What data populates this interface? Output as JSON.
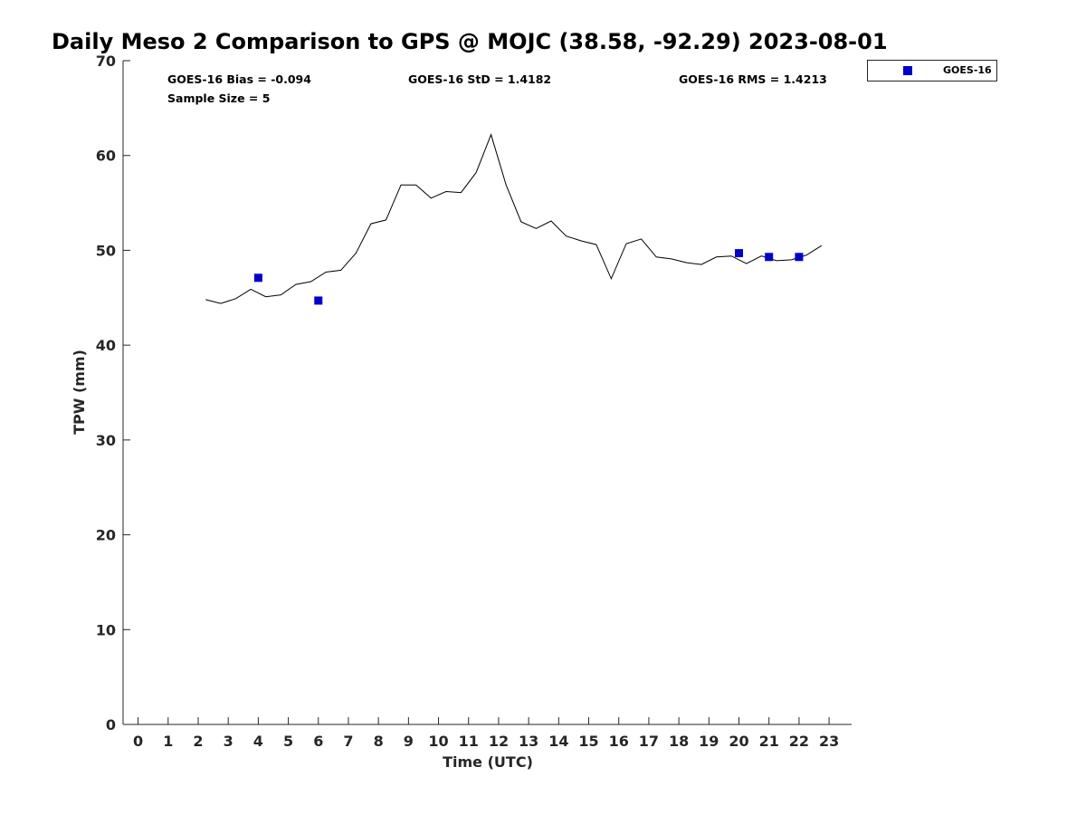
{
  "chart_data": {
    "type": "line",
    "title": "Daily Meso 2 Comparison to GPS @ MOJC (38.58, -92.29) 2023-08-01",
    "xlabel": "Time (UTC)",
    "ylabel": "TPW (mm)",
    "xlim": [
      -0.5,
      23.75
    ],
    "ylim": [
      0,
      70
    ],
    "x_ticks": [
      0,
      1,
      2,
      3,
      4,
      5,
      6,
      7,
      8,
      9,
      10,
      11,
      12,
      13,
      14,
      15,
      16,
      17,
      18,
      19,
      20,
      21,
      22,
      23
    ],
    "y_ticks": [
      0,
      10,
      20,
      30,
      40,
      50,
      60,
      70
    ],
    "grid": false,
    "legend_position": "top-right outside",
    "stats": {
      "bias": "GOES-16 Bias = -0.094",
      "std": "GOES-16 StD = 1.4182",
      "rms": "GOES-16 RMS = 1.4213",
      "sample_size": "Sample Size = 5"
    },
    "series": [
      {
        "kind": "line",
        "color": "#000000",
        "x": [
          2.25,
          2.75,
          3.25,
          3.75,
          4.25,
          4.75,
          5.25,
          5.75,
          6.25,
          6.75,
          7.25,
          7.75,
          8.25,
          8.75,
          9.25,
          9.75,
          10.25,
          10.75,
          11.25,
          11.75,
          12.25,
          12.75,
          13.25,
          13.75,
          14.25,
          14.75,
          15.25,
          15.75,
          16.25,
          16.75,
          17.25,
          17.75,
          18.25,
          18.75,
          19.25,
          19.75,
          20.25,
          20.75,
          21.25,
          21.75,
          22.25,
          22.75
        ],
        "y": [
          44.8,
          44.4,
          44.9,
          45.9,
          45.1,
          45.3,
          46.4,
          46.7,
          47.7,
          47.9,
          49.7,
          52.8,
          53.2,
          56.9,
          56.9,
          55.5,
          56.2,
          56.1,
          58.2,
          62.2,
          56.9,
          53.0,
          52.3,
          53.1,
          51.5,
          51.0,
          50.6,
          47.0,
          50.7,
          51.2,
          49.3,
          49.1,
          48.7,
          48.5,
          49.3,
          49.4,
          48.6,
          49.4,
          48.9,
          49.0,
          49.5,
          50.5
        ]
      },
      {
        "kind": "scatter",
        "name": "GOES-16",
        "color": "#0000cc",
        "x": [
          4,
          6,
          20,
          21,
          22
        ],
        "y": [
          47.1,
          44.7,
          49.7,
          49.3,
          49.3
        ]
      }
    ]
  }
}
